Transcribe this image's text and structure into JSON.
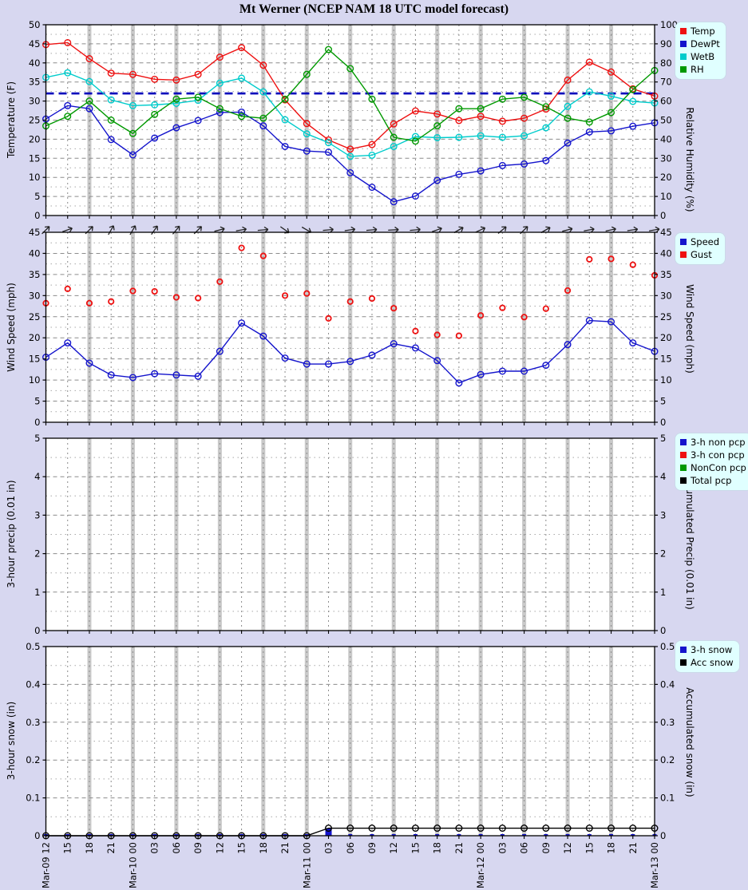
{
  "title": "Mt Werner (NCEP NAM 18 UTC model forecast)",
  "colors": {
    "background": "#d7d7f0",
    "plot_bg": "#ffffff",
    "legend_bg": "#e0ffff",
    "band": "#c9c9c9",
    "grid": "#8c8c8c",
    "frame": "#000000",
    "freezing_line": "#0000bb",
    "arrow": "#222222",
    "temp_red": "#ee1111",
    "dew_blue": "#1414cc",
    "wetb_cyan": "#00cccc",
    "rh_green": "#009900"
  },
  "x_labels": [
    "Mar-09 12",
    "15",
    "18",
    "21",
    "Mar-10 00",
    "03",
    "06",
    "09",
    "12",
    "15",
    "18",
    "21",
    "Mar-11 00",
    "03",
    "06",
    "09",
    "12",
    "15",
    "18",
    "21",
    "Mar-12 00",
    "03",
    "06",
    "09",
    "12",
    "15",
    "18",
    "21",
    "Mar-13 00"
  ],
  "chart_data": [
    {
      "id": "temperature",
      "type": "line",
      "ylabel": "Temperature (F)",
      "y2label": "Relative Humidity (%)",
      "ylim": [
        0,
        50
      ],
      "ystep": 5,
      "y2lim": [
        0,
        100
      ],
      "y2step": 10,
      "freezing_line_f": 32,
      "series": [
        {
          "name": "Temp",
          "color": "#ee1111",
          "axis": "left",
          "style": "line-circle",
          "values": [
            44.8,
            45.3,
            41.1,
            37.3,
            37.0,
            35.7,
            35.5,
            37.0,
            41.5,
            44.0,
            39.4,
            30.3,
            24.1,
            19.8,
            17.4,
            18.6,
            24.0,
            27.4,
            26.6,
            24.9,
            26.0,
            24.7,
            25.5,
            27.9,
            35.5,
            40.2,
            37.6,
            33.2,
            31.3
          ]
        },
        {
          "name": "DewPt",
          "color": "#1414cc",
          "axis": "left",
          "style": "line-circle",
          "values": [
            25.3,
            28.8,
            28.0,
            19.9,
            15.9,
            20.3,
            23.0,
            24.9,
            27.0,
            27.1,
            23.5,
            18.1,
            16.9,
            16.6,
            11.2,
            7.4,
            3.6,
            5.1,
            9.2,
            10.8,
            11.7,
            13.1,
            13.5,
            14.4,
            19.0,
            21.9,
            22.2,
            23.4,
            24.3
          ]
        },
        {
          "name": "WetB",
          "color": "#00cccc",
          "axis": "left",
          "style": "line-circle",
          "values": [
            36.2,
            37.4,
            35.1,
            30.3,
            28.8,
            29.0,
            29.4,
            30.2,
            34.7,
            36.0,
            32.4,
            25.1,
            21.4,
            19.1,
            15.5,
            15.8,
            18.1,
            20.7,
            20.4,
            20.5,
            20.9,
            20.5,
            20.9,
            23.0,
            28.6,
            32.4,
            31.3,
            29.9,
            29.5
          ]
        },
        {
          "name": "RH",
          "color": "#009900",
          "axis": "right",
          "style": "line-circle",
          "values": [
            47,
            52,
            60,
            50,
            43,
            53,
            61,
            62,
            56,
            52,
            51,
            61,
            74,
            87,
            77,
            61,
            41,
            39,
            47,
            56,
            56,
            61,
            62,
            57,
            51,
            49,
            54,
            66,
            76
          ]
        }
      ]
    },
    {
      "id": "wind",
      "type": "line",
      "ylabel": "Wind Speed (mph)",
      "y2label": "Wind Speed (mph)",
      "ylim": [
        0,
        45
      ],
      "ystep": 5,
      "wind_arrows_deg": [
        -45,
        -20,
        -45,
        -60,
        -60,
        -55,
        -50,
        -45,
        -15,
        -10,
        -5,
        35,
        30,
        -5,
        -8,
        -5,
        -3,
        -5,
        -20,
        -30,
        -25,
        -40,
        -45,
        -30,
        -15,
        -10,
        -12,
        -8,
        -10
      ],
      "series": [
        {
          "name": "Speed",
          "color": "#1414cc",
          "axis": "left",
          "style": "line-circle",
          "values": [
            15.4,
            18.8,
            14.0,
            11.2,
            10.6,
            11.5,
            11.2,
            10.9,
            16.8,
            23.5,
            20.4,
            15.2,
            13.8,
            13.8,
            14.4,
            15.9,
            18.6,
            17.6,
            14.6,
            9.3,
            11.3,
            12.1,
            12.1,
            13.5,
            18.4,
            24.1,
            23.8,
            18.8,
            16.8
          ]
        },
        {
          "name": "Gust",
          "color": "#ee1111",
          "axis": "left",
          "style": "points",
          "values": [
            28.2,
            31.6,
            28.2,
            28.6,
            31.1,
            31.0,
            29.6,
            29.4,
            33.3,
            41.3,
            39.4,
            30.0,
            30.5,
            24.6,
            28.6,
            29.3,
            27.0,
            21.6,
            20.7,
            20.5,
            25.3,
            27.1,
            24.9,
            26.9,
            31.2,
            38.6,
            38.7,
            37.3,
            34.8
          ]
        }
      ]
    },
    {
      "id": "precip",
      "type": "bar",
      "ylabel": "3-hour precip (0.01 in)",
      "y2label": "Accumulated Precip (0.01 in)",
      "ylim": [
        0,
        5
      ],
      "ystep": 1,
      "series": [
        {
          "name": "3-h non pcp",
          "color": "#1414cc",
          "axis": "left",
          "style": "bar",
          "values": []
        },
        {
          "name": "3-h con pcp",
          "color": "#ee1111",
          "axis": "left",
          "style": "bar",
          "values": []
        },
        {
          "name": "NonCon pcp",
          "color": "#009900",
          "axis": "left",
          "style": "line",
          "values": []
        },
        {
          "name": "Total pcp",
          "color": "#000000",
          "axis": "right",
          "style": "line",
          "values": []
        }
      ]
    },
    {
      "id": "snow",
      "type": "bar",
      "ylabel": "3-hour snow (in)",
      "y2label": "Accumulated snow (in)",
      "ylim": [
        0,
        0.5
      ],
      "ystep": 0.1,
      "series": [
        {
          "name": "3-h snow",
          "color": "#1414cc",
          "axis": "left",
          "style": "bar",
          "values": [
            0,
            0,
            0,
            0,
            0,
            0,
            0,
            0,
            0,
            0,
            0,
            0,
            0,
            0.02,
            0,
            0,
            0,
            0,
            0,
            0,
            0,
            0,
            0,
            0,
            0,
            0,
            0,
            0,
            0
          ]
        },
        {
          "name": "Acc snow",
          "color": "#000000",
          "axis": "right",
          "style": "line-circle",
          "values": [
            0,
            0,
            0,
            0,
            0,
            0,
            0,
            0,
            0,
            0,
            0,
            0,
            0,
            0.02,
            0.02,
            0.02,
            0.02,
            0.02,
            0.02,
            0.02,
            0.02,
            0.02,
            0.02,
            0.02,
            0.02,
            0.02,
            0.02,
            0.02,
            0.02
          ]
        }
      ]
    }
  ]
}
